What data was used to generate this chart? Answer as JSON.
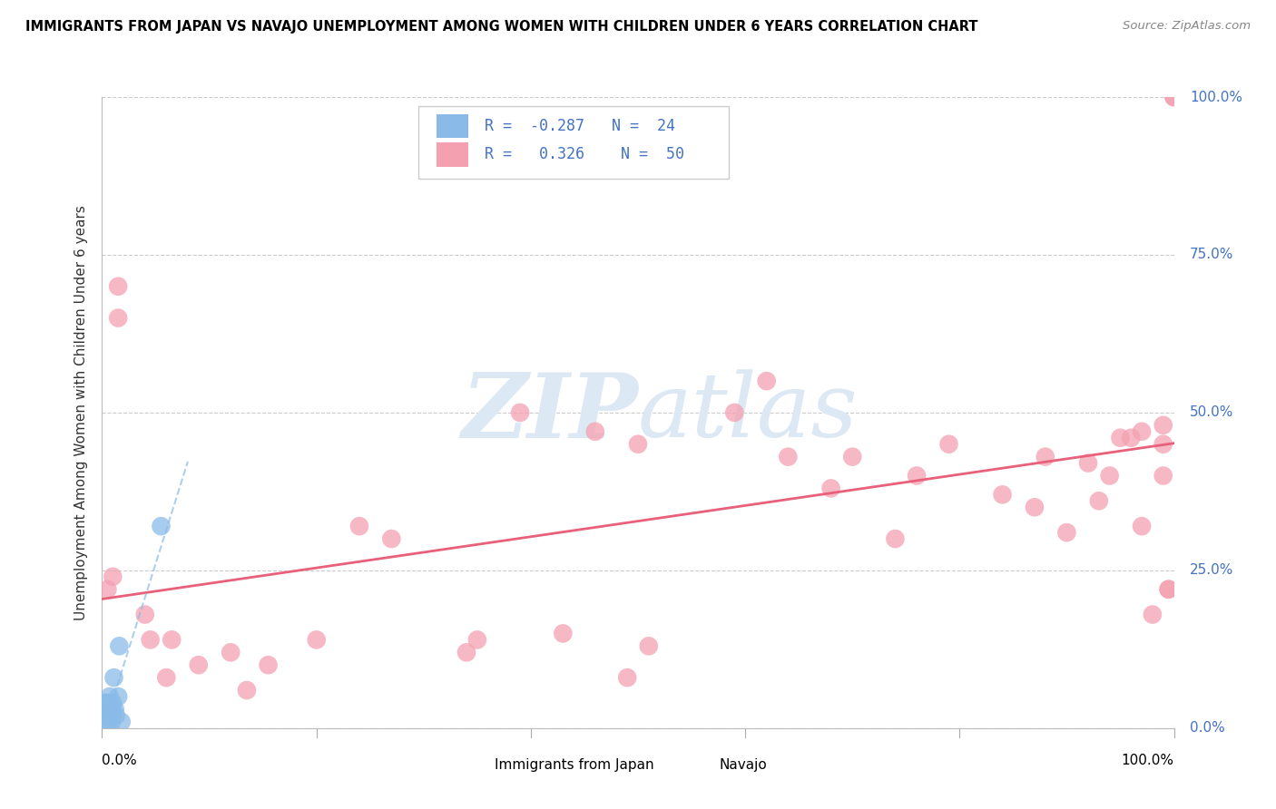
{
  "title": "IMMIGRANTS FROM JAPAN VS NAVAJO UNEMPLOYMENT AMONG WOMEN WITH CHILDREN UNDER 6 YEARS CORRELATION CHART",
  "source": "Source: ZipAtlas.com",
  "ylabel": "Unemployment Among Women with Children Under 6 years",
  "legend_label1": "Immigrants from Japan",
  "legend_label2": "Navajo",
  "R1": "-0.287",
  "N1": "24",
  "R2": "0.326",
  "N2": "50",
  "blue_color": "#8ABBE8",
  "pink_color": "#F4A0B0",
  "blue_line_color": "#8ABBE8",
  "pink_line_color": "#E8607A",
  "background_color": "#FFFFFF",
  "watermark_color": "#DDE8F5",
  "blue_scatter_x": [
    0.001,
    0.002,
    0.003,
    0.003,
    0.004,
    0.004,
    0.005,
    0.005,
    0.006,
    0.006,
    0.007,
    0.007,
    0.008,
    0.009,
    0.009,
    0.01,
    0.01,
    0.011,
    0.012,
    0.013,
    0.015,
    0.016,
    0.018,
    0.055
  ],
  "blue_scatter_y": [
    0.02,
    0.03,
    0.02,
    0.04,
    0.01,
    0.03,
    0.02,
    0.04,
    0.01,
    0.03,
    0.02,
    0.05,
    0.02,
    0.01,
    0.03,
    0.02,
    0.04,
    0.08,
    0.03,
    0.02,
    0.05,
    0.13,
    0.01,
    0.32
  ],
  "pink_scatter_x": [
    0.005,
    0.01,
    0.015,
    0.015,
    0.04,
    0.045,
    0.06,
    0.065,
    0.09,
    0.12,
    0.135,
    0.155,
    0.2,
    0.24,
    0.27,
    0.34,
    0.35,
    0.39,
    0.43,
    0.46,
    0.49,
    0.5,
    0.51,
    0.59,
    0.62,
    0.64,
    0.68,
    0.7,
    0.74,
    0.76,
    0.79,
    0.84,
    0.87,
    0.88,
    0.9,
    0.92,
    0.93,
    0.94,
    0.95,
    0.96,
    0.97,
    0.97,
    0.98,
    0.99,
    0.99,
    0.99,
    0.995,
    0.995,
    1.0,
    1.0
  ],
  "pink_scatter_y": [
    0.22,
    0.24,
    0.65,
    0.7,
    0.18,
    0.14,
    0.08,
    0.14,
    0.1,
    0.12,
    0.06,
    0.1,
    0.14,
    0.32,
    0.3,
    0.12,
    0.14,
    0.5,
    0.15,
    0.47,
    0.08,
    0.45,
    0.13,
    0.5,
    0.55,
    0.43,
    0.38,
    0.43,
    0.3,
    0.4,
    0.45,
    0.37,
    0.35,
    0.43,
    0.31,
    0.42,
    0.36,
    0.4,
    0.46,
    0.46,
    0.47,
    0.32,
    0.18,
    0.4,
    0.45,
    0.48,
    0.22,
    0.22,
    1.0,
    1.0
  ]
}
